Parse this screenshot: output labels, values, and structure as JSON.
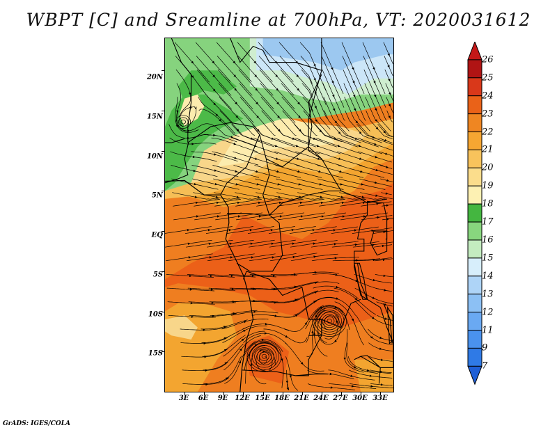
{
  "title": "WBPT [C] and Sreamline at 700hPa, VT: 2020031612",
  "footer": "GrADS: IGES/COLA",
  "map": {
    "projection": "latlon",
    "lon_range": [
      0,
      35
    ],
    "lat_range": [
      -20,
      24
    ],
    "lat_labels": [
      "20N",
      "15N",
      "10N",
      "5N",
      "EQ",
      "5S",
      "10S",
      "15S"
    ],
    "lat_values": [
      20,
      15,
      10,
      5,
      0,
      -5,
      -10,
      -15
    ],
    "lon_labels": [
      "3E",
      "6E",
      "9E",
      "12E",
      "15E",
      "18E",
      "21E",
      "24E",
      "27E",
      "30E",
      "33E"
    ],
    "lon_values": [
      3,
      6,
      9,
      12,
      15,
      18,
      21,
      24,
      27,
      30,
      33
    ],
    "colors": {
      "c_lt13": "#9cc8f0",
      "c_13_15": "#cce6f8",
      "c_15_16": "#cfeed0",
      "c_16_17": "#86d37e",
      "c_17_18": "#4cba48",
      "c_18_19": "#fcecae",
      "c_19_20": "#f8d68a",
      "c_20_21": "#f6be56",
      "c_21_22": "#f3a530",
      "c_22_23": "#ef7e20",
      "c_23_24": "#ec6018",
      "streamline": "#000000",
      "border": "#000000"
    },
    "vortices": [
      {
        "name": "low-centre-south",
        "lon": 15.2,
        "lat": -15.6
      },
      {
        "name": "low-centre-east",
        "lon": 25.2,
        "lat": -11.2
      },
      {
        "name": "low-centre-northwest",
        "lon": 2.8,
        "lat": 13.6
      }
    ]
  },
  "colorbar": {
    "labels": [
      "7",
      "9",
      "11",
      "12",
      "13",
      "14",
      "15",
      "16",
      "17",
      "18",
      "19",
      "20",
      "21",
      "22",
      "23",
      "24",
      "25",
      "26"
    ],
    "colors": [
      "#1f5fd6",
      "#2f7ae6",
      "#4a92ee",
      "#6aa9f2",
      "#8cc0f4",
      "#aed4f7",
      "#d7eefb",
      "#c4ecc0",
      "#88d67e",
      "#44b640",
      "#fdf1b3",
      "#fbdd8c",
      "#f8c35c",
      "#f6a632",
      "#ef8622",
      "#ea6218",
      "#d9381a",
      "#b01414",
      "#c41818"
    ]
  }
}
